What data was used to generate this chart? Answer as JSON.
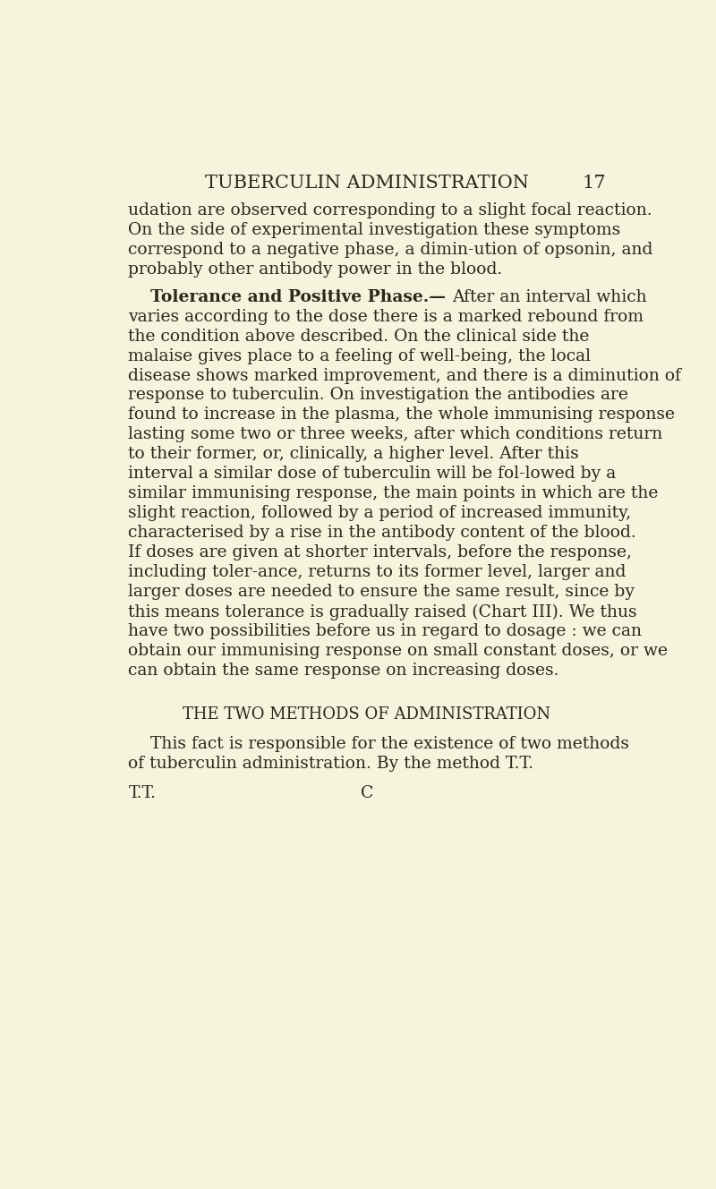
{
  "background_color": "#f5f4dc",
  "page_number": "17",
  "header": "TUBERCULIN ADMINISTRATION",
  "header_fontsize": 15,
  "page_number_fontsize": 15,
  "body_fontsize": 13.5,
  "subheader": "THE TWO METHODS OF ADMINISTRATION",
  "subheader_fontsize": 13,
  "paragraphs": [
    {
      "text": "udation are observed corresponding to a slight focal reaction.  On the side of experimental investigation these symptoms correspond to a negative phase, a dimin-ution of opsonin, and probably other antibody power in the blood.",
      "indent": false,
      "bold_prefix": ""
    },
    {
      "text": "After an interval which varies according to the dose there is a marked rebound from the condition above described.  On the clinical side the malaise gives place to a feeling of well-being, the local disease shows marked improvement, and there is a diminution of response to tuberculin. On investigation the antibodies are found to increase in the plasma, the whole immunising response lasting some two or three weeks, after which conditions return to their former, or, clinically, a higher level.  After this interval a similar dose of tuberculin will be fol-lowed by a similar immunising response, the main points in which are the slight reaction, followed by a period of increased immunity, characterised by a rise in the antibody content of the blood.  If doses are given at shorter intervals, before the response, including toler-ance, returns to its former level, larger and larger doses are needed to ensure the same result, since by this means tolerance is gradually raised (Chart III).  We thus have two possibilities before us in regard to dosage : we can obtain our immunising response on small constant doses, or we can obtain the same response on increasing doses.",
      "indent": true,
      "bold_prefix": "Tolerance and Positive Phase.—"
    },
    {
      "text": "This fact is responsible for the existence of two methods of tuberculin administration.  By the method T.T.",
      "indent": true,
      "bold_prefix": ""
    }
  ],
  "footer_left": "T.T.",
  "footer_right": "C",
  "text_color": "#2a2a1a"
}
